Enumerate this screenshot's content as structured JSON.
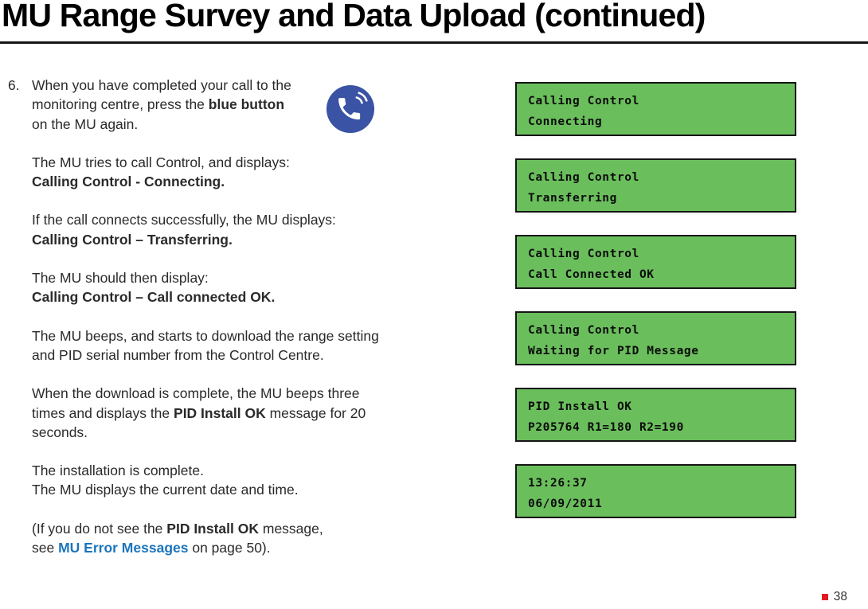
{
  "page": {
    "title": "MU Range Survey and Data Upload (continued)",
    "page_number": "38"
  },
  "instructions": {
    "step_number": "6.",
    "paragraphs": [
      {
        "lines": [
          [
            {
              "t": "When you have completed your call to the"
            }
          ],
          [
            {
              "t": "monitoring centre, press the "
            },
            {
              "t": "blue button",
              "b": true
            }
          ],
          [
            {
              "t": "on the MU again."
            }
          ]
        ]
      },
      {
        "lines": [
          [
            {
              "t": "The MU tries to call Control, and displays:"
            }
          ],
          [
            {
              "t": "Calling Control - Connecting.",
              "b": true
            }
          ]
        ]
      },
      {
        "lines": [
          [
            {
              "t": "If the call connects successfully, the MU displays:"
            }
          ],
          [
            {
              "t": "Calling Control – Transferring.",
              "b": true
            }
          ]
        ]
      },
      {
        "lines": [
          [
            {
              "t": "The MU should then display:"
            }
          ],
          [
            {
              "t": "Calling Control – Call connected OK.",
              "b": true
            }
          ]
        ]
      },
      {
        "lines": [
          [
            {
              "t": "The MU beeps, and starts to download the range setting"
            }
          ],
          [
            {
              "t": "and PID serial number from the Control Centre."
            }
          ]
        ]
      },
      {
        "lines": [
          [
            {
              "t": "When the download is complete, the MU beeps three"
            }
          ],
          [
            {
              "t": "times and displays the "
            },
            {
              "t": "PID Install OK",
              "b": true
            },
            {
              "t": " message for 20"
            }
          ],
          [
            {
              "t": "seconds."
            }
          ]
        ]
      },
      {
        "lines": [
          [
            {
              "t": "The installation is complete."
            }
          ],
          [
            {
              "t": "The MU displays the current date and time."
            }
          ]
        ]
      },
      {
        "lines": [
          [
            {
              "t": "(If you do not see the "
            },
            {
              "t": "PID Install OK",
              "b": true
            },
            {
              "t": " message,"
            }
          ],
          [
            {
              "t": "see "
            },
            {
              "t": "MU Error Messages",
              "b": true,
              "link": true,
              "name": "mu-error-messages-link"
            },
            {
              "t": " on page 50)."
            }
          ]
        ]
      }
    ]
  },
  "displays": [
    {
      "line1": "Calling Control",
      "line2": "Connecting"
    },
    {
      "line1": "Calling Control",
      "line2": "Transferring"
    },
    {
      "line1": "Calling Control",
      "line2": "Call Connected OK"
    },
    {
      "line1": "Calling Control",
      "line2": "Waiting for PID Message"
    },
    {
      "line1": "PID Install OK",
      "line2": "P205764 R1=180 R2=190"
    },
    {
      "line1": "13:26:37",
      "line2": "06/09/2011"
    }
  ],
  "icon": {
    "name": "blue-phone-button-icon"
  },
  "colors": {
    "display_green": "#6abf5c",
    "link_blue": "#1b75bc",
    "page_marker_red": "#e01b22",
    "icon_blue": "#3a53a4"
  }
}
